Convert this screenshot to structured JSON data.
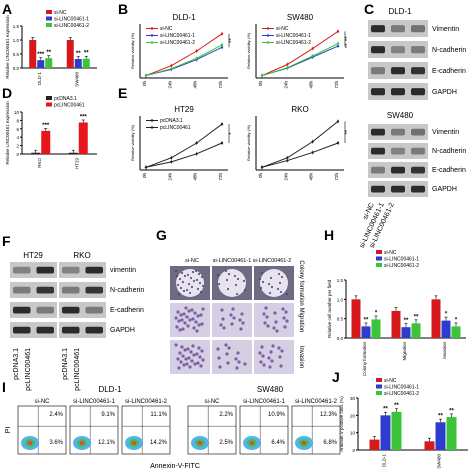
{
  "colors": {
    "si_nc": "#d7191c",
    "si_1": "#2b3ccf",
    "si_2": "#39c43a",
    "pcdna": "#222222",
    "pclinc": "#e8161b"
  },
  "panel_labels": {
    "a": "A",
    "b": "B",
    "c": "C",
    "d": "D",
    "e": "E",
    "f": "F",
    "g": "G",
    "h": "H",
    "i": "I",
    "j": "J"
  },
  "chart_data": [
    {
      "id": "A",
      "type": "bar",
      "ylabel": "Relative LINC00461 expression",
      "categories": [
        "DLD-1",
        "SW480"
      ],
      "series": [
        {
          "name": "si-NC",
          "values": [
            1.0,
            1.0
          ],
          "sig": [
            "",
            ""
          ]
        },
        {
          "name": "si-LINC00461-1",
          "values": [
            0.28,
            0.32
          ],
          "sig": [
            "***",
            "**"
          ]
        },
        {
          "name": "si-LINC00461-2",
          "values": [
            0.35,
            0.33
          ],
          "sig": [
            "**",
            "**"
          ]
        }
      ],
      "ylim": [
        0,
        1.5
      ]
    },
    {
      "id": "B1",
      "type": "line",
      "title": "DLD-1",
      "ylabel": "Relative viability (%)",
      "categories": [
        "0h",
        "24h",
        "48h",
        "72h"
      ],
      "series": [
        {
          "name": "si-NC",
          "values": [
            0.1,
            0.5,
            1.1,
            1.8
          ]
        },
        {
          "name": "si-LINC00461-1",
          "values": [
            0.1,
            0.35,
            0.75,
            1.25
          ]
        },
        {
          "name": "si-LINC00461-2",
          "values": [
            0.1,
            0.38,
            0.8,
            1.35
          ]
        }
      ],
      "ylim": [
        0,
        2.2
      ],
      "sig": [
        "**"
      ]
    },
    {
      "id": "B2",
      "type": "line",
      "title": "SW480",
      "ylabel": "Relative viability (%)",
      "categories": [
        "0h",
        "24h",
        "48h",
        "72h"
      ],
      "series": [
        {
          "name": "si-NC",
          "values": [
            0.1,
            0.55,
            1.2,
            1.9
          ]
        },
        {
          "name": "si-LINC00461-1",
          "values": [
            0.1,
            0.4,
            0.85,
            1.3
          ]
        },
        {
          "name": "si-LINC00461-2",
          "values": [
            0.1,
            0.42,
            0.9,
            1.4
          ]
        }
      ],
      "ylim": [
        0,
        2.2
      ],
      "sig": [
        "**",
        "**"
      ]
    },
    {
      "id": "D",
      "type": "bar",
      "ylabel": "Relative LINC00461 expression",
      "categories": [
        "RKO",
        "HT29"
      ],
      "series": [
        {
          "name": "pcDNA3.1",
          "values": [
            0.3,
            0.3
          ],
          "sig": [
            "",
            ""
          ]
        },
        {
          "name": "pcLINC00461",
          "values": [
            5.5,
            7.5
          ],
          "sig": [
            "***",
            "***"
          ]
        }
      ],
      "ylim": [
        0,
        10
      ]
    },
    {
      "id": "E1",
      "type": "line",
      "title": "HT29",
      "ylabel": "Relative viability (%)",
      "categories": [
        "0h",
        "24h",
        "48h",
        "72h"
      ],
      "series": [
        {
          "name": "pcDNA3.1",
          "values": [
            0.1,
            0.3,
            0.6,
            1.0
          ]
        },
        {
          "name": "pcLINC00461",
          "values": [
            0.1,
            0.45,
            1.0,
            1.7
          ]
        }
      ],
      "ylim": [
        0,
        2
      ],
      "sig": [
        "*"
      ]
    },
    {
      "id": "E2",
      "type": "line",
      "title": "RKO",
      "ylabel": "Relative viability (%)",
      "categories": [
        "0h",
        "24h",
        "48h",
        "72h"
      ],
      "series": [
        {
          "name": "pcDNA3.1",
          "values": [
            0.1,
            0.35,
            0.65,
            1.0
          ]
        },
        {
          "name": "pcLINC00461",
          "values": [
            0.1,
            0.45,
            1.05,
            1.8
          ]
        }
      ],
      "ylim": [
        0,
        2
      ],
      "sig": [
        "**"
      ]
    },
    {
      "id": "H",
      "type": "bar",
      "ylabel": "Relative cell number per field",
      "categories": [
        "Colony formation",
        "Migration",
        "Invasion"
      ],
      "series": [
        {
          "name": "si-NC",
          "values": [
            1.0,
            0.7,
            1.0
          ],
          "sig": [
            "",
            "",
            ""
          ]
        },
        {
          "name": "si-LINC00461-1",
          "values": [
            0.3,
            0.28,
            0.45
          ],
          "sig": [
            "**",
            "**",
            "*"
          ]
        },
        {
          "name": "si-LINC00461-2",
          "values": [
            0.48,
            0.38,
            0.3
          ],
          "sig": [
            "*",
            "**",
            "*"
          ]
        }
      ],
      "ylim": [
        0,
        1.5
      ]
    },
    {
      "id": "J",
      "type": "bar",
      "ylabel": "Annexin V positive cells (%)",
      "categories": [
        "DLD-1",
        "SW480"
      ],
      "series": [
        {
          "name": "si-NC",
          "values": [
            6,
            5
          ],
          "sig": [
            "",
            ""
          ]
        },
        {
          "name": "si-LINC00461-1",
          "values": [
            20,
            16
          ],
          "sig": [
            "**",
            "**"
          ]
        },
        {
          "name": "si-LINC00461-2",
          "values": [
            22,
            19
          ],
          "sig": [
            "**",
            "**"
          ]
        }
      ],
      "ylim": [
        0,
        30
      ]
    }
  ],
  "axis_ticks": {
    "A": [
      "0.0",
      "0.5",
      "1.0",
      "1.5"
    ],
    "D": [
      "0",
      "2",
      "4",
      "6",
      "8",
      "10"
    ],
    "H": [
      "0.0",
      "0.5",
      "1.0",
      "1.5"
    ],
    "J": [
      "0",
      "10",
      "20",
      "30"
    ]
  },
  "blot_c": {
    "title_top": "DLD-1",
    "title_bottom": "SW480",
    "labels": [
      "Vimentin",
      "N-cadherin",
      "E-cadherin",
      "GAPDH"
    ],
    "lanes": [
      "si-NC",
      "si-LINC00461-1",
      "si-LINC00461-2"
    ]
  },
  "blot_f": {
    "cols": [
      "HT29",
      "RKO"
    ],
    "labels": [
      "vimentin",
      "N-cadherin",
      "E-cadherin",
      "GAPDH"
    ],
    "lanes": [
      "pcDNA3.1",
      "pcLINC00461"
    ]
  },
  "panel_g": {
    "cols": [
      "si-NC",
      "si-LINC00461-1",
      "si-LINC00461-2"
    ],
    "rows": [
      "Colony formation",
      "Migration",
      "Invasion"
    ]
  },
  "flow_i": {
    "group1": "DLD-1",
    "group2": "SW480",
    "plot_titles": [
      "si-NC",
      "si-LINC00461-1",
      "si-LINC00461-2",
      "si-NC",
      "si-LINC00461-1",
      "si-LINC00461-2"
    ],
    "upper_pct": [
      "2.4%",
      "9.1%",
      "11.1%",
      "2.2%",
      "10.9%",
      "12.3%"
    ],
    "lower_pct": [
      "3.6%",
      "12.1%",
      "14.2%",
      "2.5%",
      "6.4%",
      "6.8%"
    ],
    "xlabel": "Annexin-V-FITC",
    "ylabel": "PI"
  }
}
